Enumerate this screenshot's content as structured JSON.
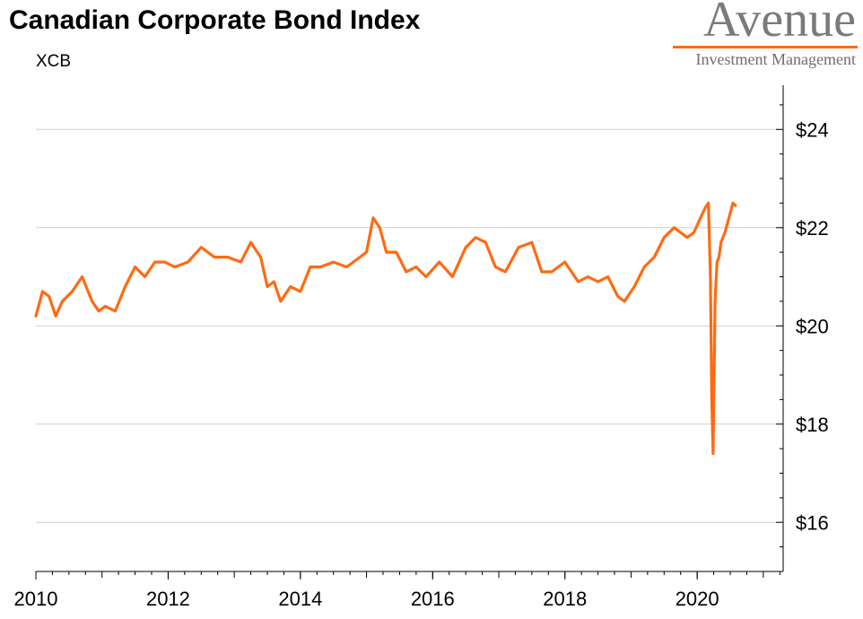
{
  "header": {
    "title": "Canadian Corporate Bond Index",
    "subtitle": "XCB"
  },
  "logo": {
    "name": "Avenue",
    "tagline": "Investment Management",
    "accent_color": "#ff6a13",
    "text_color": "#7a7a7a"
  },
  "chart_data": {
    "type": "line",
    "title": "Canadian Corporate Bond Index",
    "subtitle": "XCB",
    "xlabel": "",
    "ylabel": "",
    "x_ticks": [
      "2010",
      "2012",
      "2014",
      "2016",
      "2018",
      "2020"
    ],
    "y_ticks": [
      "$16",
      "$18",
      "$20",
      "$22",
      "$24"
    ],
    "xlim": [
      2010.0,
      2021.3
    ],
    "ylim": [
      15.0,
      24.9
    ],
    "grid": "horizontal",
    "y_axis_side": "right",
    "series": [
      {
        "color": "#ff6a13",
        "x": [
          2010.0,
          2010.1,
          2010.2,
          2010.3,
          2010.4,
          2010.55,
          2010.7,
          2010.85,
          2010.95,
          2011.05,
          2011.2,
          2011.35,
          2011.5,
          2011.65,
          2011.8,
          2011.95,
          2012.1,
          2012.3,
          2012.5,
          2012.7,
          2012.9,
          2013.1,
          2013.25,
          2013.4,
          2013.5,
          2013.6,
          2013.7,
          2013.85,
          2014.0,
          2014.15,
          2014.3,
          2014.5,
          2014.7,
          2014.9,
          2015.0,
          2015.1,
          2015.2,
          2015.3,
          2015.45,
          2015.6,
          2015.75,
          2015.9,
          2016.1,
          2016.3,
          2016.5,
          2016.65,
          2016.8,
          2016.95,
          2017.1,
          2017.3,
          2017.5,
          2017.65,
          2017.8,
          2018.0,
          2018.2,
          2018.35,
          2018.5,
          2018.65,
          2018.8,
          2018.9,
          2019.05,
          2019.2,
          2019.35,
          2019.5,
          2019.65,
          2019.75,
          2019.85,
          2019.95,
          2020.05,
          2020.12,
          2020.17,
          2020.2,
          2020.22,
          2020.24,
          2020.27,
          2020.3,
          2020.33,
          2020.36,
          2020.42,
          2020.48,
          2020.54,
          2020.58
        ],
        "values": [
          20.2,
          20.7,
          20.6,
          20.2,
          20.5,
          20.7,
          21.0,
          20.5,
          20.3,
          20.4,
          20.3,
          20.8,
          21.2,
          21.0,
          21.3,
          21.3,
          21.2,
          21.3,
          21.6,
          21.4,
          21.4,
          21.3,
          21.7,
          21.4,
          20.8,
          20.9,
          20.5,
          20.8,
          20.7,
          21.2,
          21.2,
          21.3,
          21.2,
          21.4,
          21.5,
          22.2,
          22.0,
          21.5,
          21.5,
          21.1,
          21.2,
          21.0,
          21.3,
          21.0,
          21.6,
          21.8,
          21.7,
          21.2,
          21.1,
          21.6,
          21.7,
          21.1,
          21.1,
          21.3,
          20.9,
          21.0,
          20.9,
          21.0,
          20.6,
          20.5,
          20.8,
          21.2,
          21.4,
          21.8,
          22.0,
          21.9,
          21.8,
          21.9,
          22.2,
          22.4,
          22.5,
          21.0,
          18.5,
          17.4,
          20.5,
          21.3,
          21.4,
          21.7,
          21.9,
          22.2,
          22.5,
          22.45
        ]
      }
    ]
  }
}
